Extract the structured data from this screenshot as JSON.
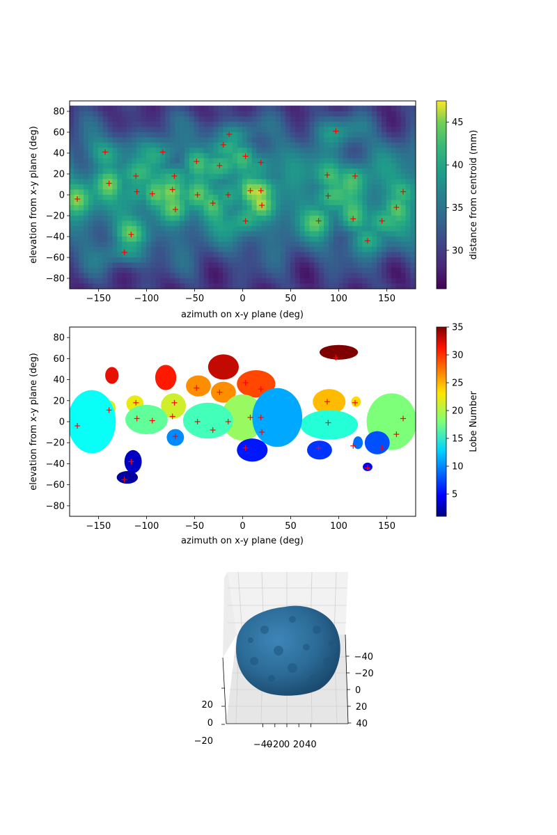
{
  "chart_data": [
    {
      "type": "heatmap",
      "xlabel": "azimuth on x-y plane (deg)",
      "ylabel": "elevation from x-y plane (deg)",
      "xlim": [
        -180,
        180
      ],
      "ylim": [
        -90,
        90
      ],
      "xticks": [
        -150,
        -100,
        -50,
        0,
        50,
        100,
        150
      ],
      "xtick_labels": [
        "−150",
        "−100",
        "−50",
        "0",
        "50",
        "100",
        "150"
      ],
      "yticks": [
        -80,
        -60,
        -40,
        -20,
        0,
        20,
        40,
        60,
        80
      ],
      "ytick_labels": [
        "−80",
        "−60",
        "−40",
        "−20",
        "0",
        "20",
        "40",
        "60",
        "80"
      ],
      "colormap": "viridis",
      "colorbar": {
        "label": "distance from centroid (mm)",
        "range": [
          25.5,
          47.5
        ],
        "ticks": [
          30,
          35,
          40,
          45
        ],
        "tick_labels": [
          "30",
          "35",
          "40",
          "45"
        ]
      },
      "markers": {
        "style": "+",
        "color": "#ff0000",
        "points": [
          [
            -172,
            -4
          ],
          [
            -143,
            41
          ],
          [
            -139,
            11
          ],
          [
            -111,
            18
          ],
          [
            -110,
            3
          ],
          [
            -123,
            -55
          ],
          [
            -116,
            -38
          ],
          [
            -94,
            1
          ],
          [
            -83,
            41
          ],
          [
            -73,
            5
          ],
          [
            -71,
            18
          ],
          [
            -70,
            -14
          ],
          [
            -48,
            32
          ],
          [
            -47,
            0
          ],
          [
            -31,
            -8
          ],
          [
            -24,
            28
          ],
          [
            -20,
            48
          ],
          [
            -15,
            0
          ],
          [
            -14,
            58
          ],
          [
            3,
            37
          ],
          [
            3,
            -25
          ],
          [
            8,
            4
          ],
          [
            19,
            31
          ],
          [
            19,
            4
          ],
          [
            20,
            -10
          ],
          [
            79,
            -25
          ],
          [
            88,
            19
          ],
          [
            89,
            -1
          ],
          [
            97,
            61
          ],
          [
            115,
            -23
          ],
          [
            117,
            18
          ],
          [
            130,
            -44
          ],
          [
            145,
            -25
          ],
          [
            160,
            -12
          ],
          [
            167,
            3
          ]
        ]
      }
    },
    {
      "type": "heatmap",
      "xlabel": "azimuth on x-y plane (deg)",
      "ylabel": "elevation from x-y plane (deg)",
      "xlim": [
        -180,
        180
      ],
      "ylim": [
        -90,
        90
      ],
      "xticks": [
        -150,
        -100,
        -50,
        0,
        50,
        100,
        150
      ],
      "xtick_labels": [
        "−150",
        "−100",
        "−50",
        "0",
        "50",
        "100",
        "150"
      ],
      "yticks": [
        -80,
        -60,
        -40,
        -20,
        0,
        20,
        40,
        60,
        80
      ],
      "ytick_labels": [
        "−80",
        "−60",
        "−40",
        "−20",
        "0",
        "20",
        "40",
        "60",
        "80"
      ],
      "colormap": "jet",
      "colorbar": {
        "label": "Lobe Number",
        "range": [
          1,
          35
        ],
        "ticks": [
          5,
          10,
          15,
          20,
          25,
          30,
          35
        ],
        "tick_labels": [
          "5",
          "10",
          "15",
          "20",
          "25",
          "30",
          "35"
        ]
      },
      "markers": {
        "style": "+",
        "color": "#ff0000",
        "points": [
          [
            -172,
            -4
          ],
          [
            -139,
            11
          ],
          [
            -111,
            18
          ],
          [
            -110,
            3
          ],
          [
            -123,
            -55
          ],
          [
            -116,
            -38
          ],
          [
            -94,
            1
          ],
          [
            -73,
            5
          ],
          [
            -71,
            18
          ],
          [
            -70,
            -14
          ],
          [
            -48,
            32
          ],
          [
            -47,
            0
          ],
          [
            -31,
            -8
          ],
          [
            -24,
            28
          ],
          [
            -15,
            0
          ],
          [
            3,
            37
          ],
          [
            3,
            -25
          ],
          [
            8,
            4
          ],
          [
            19,
            31
          ],
          [
            19,
            4
          ],
          [
            20,
            -10
          ],
          [
            79,
            -25
          ],
          [
            88,
            19
          ],
          [
            89,
            -1
          ],
          [
            97,
            61
          ],
          [
            115,
            -23
          ],
          [
            117,
            18
          ],
          [
            130,
            -44
          ],
          [
            145,
            -25
          ],
          [
            160,
            -12
          ],
          [
            167,
            3
          ]
        ]
      },
      "lobes": [
        {
          "value": 35,
          "cx": 100,
          "cy": 66,
          "rx": 20,
          "ry": 7
        },
        {
          "value": 33,
          "cx": -20,
          "cy": 52,
          "rx": 16,
          "ry": 12
        },
        {
          "value": 32,
          "cx": -136,
          "cy": 44,
          "rx": 7,
          "ry": 8
        },
        {
          "value": 31,
          "cx": -80,
          "cy": 42,
          "rx": 11,
          "ry": 12
        },
        {
          "value": 29,
          "cx": 14,
          "cy": 36,
          "rx": 20,
          "ry": 13
        },
        {
          "value": 26,
          "cx": -46,
          "cy": 34,
          "rx": 13,
          "ry": 10
        },
        {
          "value": 26,
          "cx": -20,
          "cy": 28,
          "rx": 13,
          "ry": 10
        },
        {
          "value": 24,
          "cx": 90,
          "cy": 19,
          "rx": 17,
          "ry": 12
        },
        {
          "value": 23,
          "cx": 118,
          "cy": 19,
          "rx": 5,
          "ry": 5
        },
        {
          "value": 22,
          "cx": -112,
          "cy": 17,
          "rx": 9,
          "ry": 8
        },
        {
          "value": 21,
          "cx": -138,
          "cy": 13,
          "rx": 6,
          "ry": 7
        },
        {
          "value": 21,
          "cx": -72,
          "cy": 15,
          "rx": 13,
          "ry": 12
        },
        {
          "value": 19,
          "cx": 0,
          "cy": 4,
          "rx": 22,
          "ry": 22
        },
        {
          "value": 18,
          "cx": 155,
          "cy": 0,
          "rx": 26,
          "ry": 27
        },
        {
          "value": 17,
          "cx": -100,
          "cy": 2,
          "rx": 22,
          "ry": 14
        },
        {
          "value": 16,
          "cx": -36,
          "cy": 1,
          "rx": 26,
          "ry": 17
        },
        {
          "value": 15,
          "cx": 90,
          "cy": -3,
          "rx": 30,
          "ry": 14
        },
        {
          "value": 14,
          "cx": -157,
          "cy": 0,
          "rx": 25,
          "ry": 30
        },
        {
          "value": 11,
          "cx": 36,
          "cy": 4,
          "rx": 26,
          "ry": 28
        },
        {
          "value": 10,
          "cx": -70,
          "cy": -15,
          "rx": 9,
          "ry": 8
        },
        {
          "value": 9,
          "cx": 120,
          "cy": -20,
          "rx": 5,
          "ry": 6
        },
        {
          "value": 8,
          "cx": 140,
          "cy": -20,
          "rx": 13,
          "ry": 11
        },
        {
          "value": 7,
          "cx": 80,
          "cy": -27,
          "rx": 13,
          "ry": 9
        },
        {
          "value": 6,
          "cx": 10,
          "cy": -27,
          "rx": 16,
          "ry": 11
        },
        {
          "value": 5,
          "cx": 130,
          "cy": -43,
          "rx": 5,
          "ry": 4
        },
        {
          "value": 3,
          "cx": -114,
          "cy": -38,
          "rx": 9,
          "ry": 11
        },
        {
          "value": 2,
          "cx": -120,
          "cy": -53,
          "rx": 11,
          "ry": 6
        }
      ]
    },
    {
      "type": "scatter",
      "subtype": "3d-surface",
      "surface_color": "#2b6a96",
      "xticks": [
        -40,
        -20,
        0,
        20,
        40
      ],
      "xtick_labels": [
        "−40",
        "−20",
        "0",
        "20",
        "40"
      ],
      "yticks": [
        -40,
        -20,
        0,
        20,
        40
      ],
      "ytick_labels": [
        "−40",
        "−20",
        "0",
        "20",
        "40"
      ],
      "zticks": [
        -20,
        0,
        20
      ],
      "ztick_labels": [
        "−20",
        "0",
        "20"
      ]
    }
  ]
}
